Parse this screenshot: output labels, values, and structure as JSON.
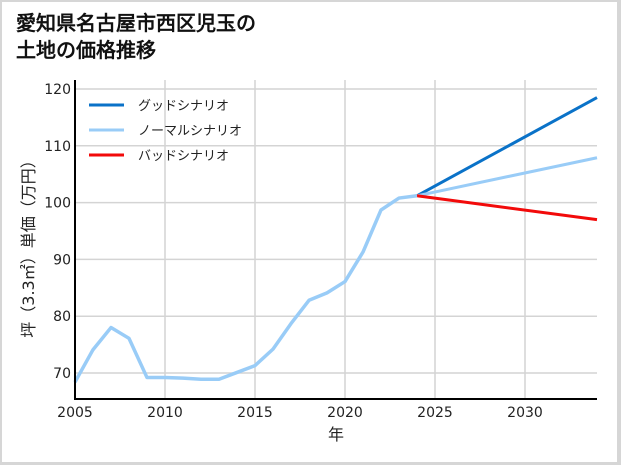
{
  "title_line1": "愛知県名古屋市西区児玉の",
  "title_line2": "土地の価格推移",
  "chart_data": {
    "type": "line",
    "title": "愛知県名古屋市西区児玉の土地の価格推移",
    "xlabel": "年",
    "ylabel": "坪（3.3㎡）単価（万円）",
    "xlim": [
      2005,
      2034
    ],
    "ylim": [
      66,
      124
    ],
    "xticks": [
      2005,
      2010,
      2015,
      2020,
      2025,
      2030
    ],
    "yticks": [
      70,
      80,
      90,
      100,
      110,
      120
    ],
    "grid": true,
    "legend_position": "upper left",
    "historical": {
      "x": [
        2005,
        2006,
        2007,
        2008,
        2009,
        2010,
        2011,
        2012,
        2013,
        2014,
        2015,
        2016,
        2017,
        2018,
        2019,
        2020,
        2021,
        2022,
        2023,
        2024
      ],
      "y": [
        68.4,
        74.1,
        78.0,
        76.1,
        69.2,
        69.2,
        69.1,
        68.9,
        68.9,
        70.1,
        71.3,
        74.2,
        78.7,
        82.8,
        84.1,
        86.1,
        91.3,
        98.7,
        100.8,
        101.2
      ]
    },
    "series": [
      {
        "name": "グッドシナリオ",
        "color": "#0a72c8",
        "x": [
          2024,
          2034
        ],
        "y": [
          101.2,
          118.5
        ]
      },
      {
        "name": "ノーマルシナリオ",
        "color": "#99ccf7",
        "x": [
          2024,
          2034
        ],
        "y": [
          101.2,
          107.9
        ]
      },
      {
        "name": "バッドシナリオ",
        "color": "#f20a0a",
        "x": [
          2024,
          2034
        ],
        "y": [
          101.2,
          97.0
        ]
      }
    ]
  }
}
